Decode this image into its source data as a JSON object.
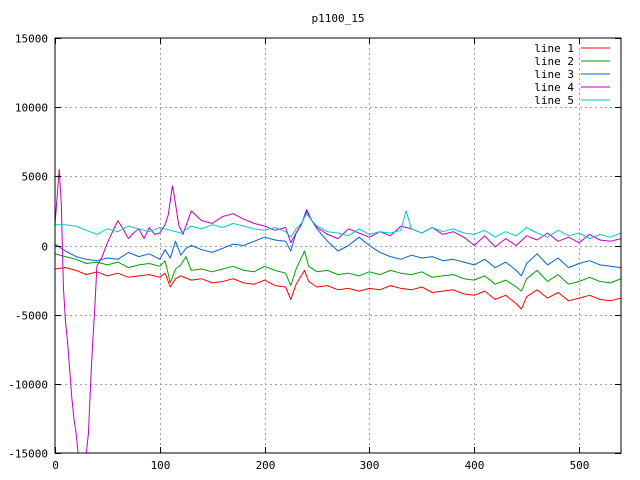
{
  "chart_data": {
    "type": "line",
    "title": "p1100_15",
    "xlabel": "",
    "ylabel": "",
    "xlim": [
      0,
      540
    ],
    "ylim": [
      -15000,
      15000
    ],
    "xticks": [
      0,
      100,
      200,
      300,
      400,
      500
    ],
    "yticks": [
      -15000,
      -10000,
      -5000,
      0,
      5000,
      10000,
      15000
    ],
    "grid": true,
    "legend_position": "top-right",
    "series": [
      {
        "name": "line 1",
        "color": "#ff0000",
        "x": [
          0,
          10,
          20,
          30,
          40,
          50,
          60,
          70,
          80,
          90,
          100,
          105,
          110,
          115,
          120,
          130,
          140,
          150,
          160,
          170,
          180,
          190,
          200,
          210,
          220,
          225,
          230,
          238,
          242,
          250,
          260,
          270,
          280,
          290,
          300,
          310,
          320,
          330,
          340,
          350,
          360,
          370,
          380,
          390,
          400,
          410,
          420,
          430,
          440,
          445,
          450,
          460,
          470,
          480,
          490,
          500,
          510,
          520,
          530,
          540
        ],
        "y": [
          -1700,
          -1600,
          -1800,
          -2100,
          -1900,
          -2200,
          -2000,
          -2300,
          -2200,
          -2100,
          -2300,
          -2000,
          -3000,
          -2400,
          -2200,
          -2500,
          -2400,
          -2700,
          -2600,
          -2400,
          -2700,
          -2800,
          -2500,
          -2900,
          -3000,
          -3900,
          -2800,
          -1800,
          -2600,
          -3000,
          -2900,
          -3200,
          -3100,
          -3300,
          -3100,
          -3200,
          -2900,
          -3100,
          -3200,
          -3000,
          -3400,
          -3300,
          -3200,
          -3500,
          -3600,
          -3300,
          -3900,
          -3600,
          -4200,
          -4600,
          -3700,
          -3200,
          -3800,
          -3400,
          -4000,
          -3800,
          -3600,
          -3900,
          -4000,
          -3800
        ]
      },
      {
        "name": "line 2",
        "color": "#00a000",
        "x": [
          0,
          10,
          20,
          30,
          40,
          50,
          60,
          70,
          80,
          90,
          100,
          105,
          110,
          115,
          120,
          125,
          130,
          140,
          150,
          160,
          170,
          180,
          190,
          200,
          210,
          220,
          225,
          230,
          238,
          242,
          250,
          260,
          270,
          280,
          290,
          300,
          310,
          320,
          330,
          340,
          350,
          360,
          370,
          380,
          390,
          400,
          410,
          420,
          430,
          440,
          445,
          450,
          460,
          470,
          480,
          490,
          500,
          510,
          520,
          530,
          540
        ],
        "y": [
          -600,
          -800,
          -1000,
          -1300,
          -1200,
          -1400,
          -1200,
          -1600,
          -1400,
          -1300,
          -1500,
          -1100,
          -2700,
          -1700,
          -1400,
          -800,
          -1800,
          -1700,
          -1900,
          -1700,
          -1500,
          -1800,
          -1900,
          -1500,
          -1800,
          -2000,
          -2900,
          -1700,
          -400,
          -1500,
          -1900,
          -1800,
          -2100,
          -2000,
          -2200,
          -1900,
          -2100,
          -1800,
          -2000,
          -2100,
          -1900,
          -2300,
          -2200,
          -2100,
          -2400,
          -2500,
          -2200,
          -2800,
          -2500,
          -3000,
          -3300,
          -2400,
          -1800,
          -2600,
          -2100,
          -2800,
          -2600,
          -2300,
          -2600,
          -2700,
          -2400
        ]
      },
      {
        "name": "line 3",
        "color": "#0066cc",
        "x": [
          0,
          10,
          20,
          30,
          40,
          50,
          60,
          70,
          80,
          90,
          100,
          105,
          110,
          115,
          120,
          125,
          130,
          140,
          150,
          160,
          170,
          180,
          190,
          200,
          210,
          220,
          225,
          230,
          235,
          240,
          245,
          250,
          260,
          270,
          280,
          290,
          300,
          310,
          320,
          330,
          340,
          350,
          360,
          370,
          380,
          390,
          400,
          410,
          420,
          430,
          440,
          445,
          450,
          460,
          470,
          480,
          490,
          500,
          510,
          520,
          530,
          540
        ],
        "y": [
          100,
          -400,
          -800,
          -1000,
          -1100,
          -900,
          -1000,
          -500,
          -800,
          -600,
          -1000,
          -300,
          -900,
          300,
          -700,
          -200,
          0,
          -300,
          -500,
          -200,
          100,
          0,
          300,
          600,
          400,
          300,
          -400,
          900,
          1500,
          2500,
          1800,
          1200,
          300,
          -400,
          0,
          600,
          0,
          -500,
          -800,
          -1000,
          -700,
          -900,
          -800,
          -1100,
          -1000,
          -1200,
          -1400,
          -1000,
          -1600,
          -1200,
          -1800,
          -2200,
          -1300,
          -600,
          -1400,
          -900,
          -1600,
          -1300,
          -1100,
          -1400,
          -1500,
          -1600
        ]
      },
      {
        "name": "line 4",
        "color": "#c000c0",
        "x": [
          0,
          2,
          4,
          6,
          8,
          10,
          12,
          14,
          16,
          18,
          20,
          22,
          24,
          26,
          28,
          30,
          32,
          34,
          36,
          38,
          40,
          45,
          50,
          55,
          60,
          65,
          70,
          75,
          80,
          85,
          90,
          95,
          100,
          105,
          108,
          112,
          114,
          118,
          122,
          130,
          140,
          150,
          160,
          170,
          180,
          190,
          200,
          210,
          220,
          225,
          230,
          235,
          240,
          245,
          250,
          260,
          270,
          280,
          290,
          300,
          310,
          320,
          330,
          340,
          350,
          360,
          370,
          380,
          390,
          400,
          410,
          420,
          430,
          440,
          450,
          460,
          470,
          480,
          490,
          500,
          510,
          520,
          530,
          540
        ],
        "y": [
          1500,
          3500,
          5500,
          3000,
          -3000,
          -5500,
          -7000,
          -9000,
          -11000,
          -12500,
          -13500,
          -15000,
          -15000,
          -15000,
          -15000,
          -15000,
          -13500,
          -10000,
          -7000,
          -4500,
          -1500,
          -800,
          200,
          1000,
          1800,
          1200,
          500,
          900,
          1200,
          500,
          1300,
          800,
          900,
          1500,
          2200,
          4300,
          3500,
          1500,
          800,
          2500,
          1800,
          1600,
          2100,
          2300,
          1900,
          1600,
          1400,
          1100,
          1300,
          200,
          900,
          1500,
          2600,
          1800,
          1300,
          800,
          500,
          1200,
          900,
          600,
          1000,
          700,
          1400,
          1200,
          900,
          1300,
          800,
          1000,
          600,
          0,
          700,
          -100,
          500,
          0,
          700,
          400,
          900,
          300,
          600,
          200,
          800,
          400,
          300,
          500
        ]
      },
      {
        "name": "line 5",
        "color": "#00cccc",
        "x": [
          0,
          10,
          20,
          30,
          40,
          50,
          60,
          70,
          80,
          90,
          100,
          110,
          120,
          130,
          140,
          150,
          160,
          170,
          180,
          190,
          200,
          210,
          220,
          225,
          230,
          235,
          240,
          245,
          250,
          260,
          270,
          280,
          290,
          300,
          310,
          320,
          330,
          335,
          340,
          350,
          360,
          370,
          380,
          390,
          400,
          410,
          420,
          430,
          440,
          450,
          460,
          470,
          480,
          490,
          500,
          510,
          520,
          530,
          540
        ],
        "y": [
          1500,
          1500,
          1400,
          1100,
          800,
          1200,
          1000,
          1400,
          1200,
          1000,
          1300,
          1100,
          900,
          1400,
          1200,
          1500,
          1300,
          1600,
          1400,
          1200,
          1100,
          1300,
          1000,
          600,
          1200,
          1600,
          2300,
          1800,
          1400,
          1000,
          900,
          700,
          1200,
          800,
          1000,
          900,
          1100,
          2500,
          1200,
          900,
          1300,
          1000,
          1200,
          900,
          800,
          1100,
          600,
          1000,
          700,
          1300,
          900,
          600,
          1100,
          700,
          900,
          500,
          800,
          600,
          900
        ]
      }
    ]
  }
}
